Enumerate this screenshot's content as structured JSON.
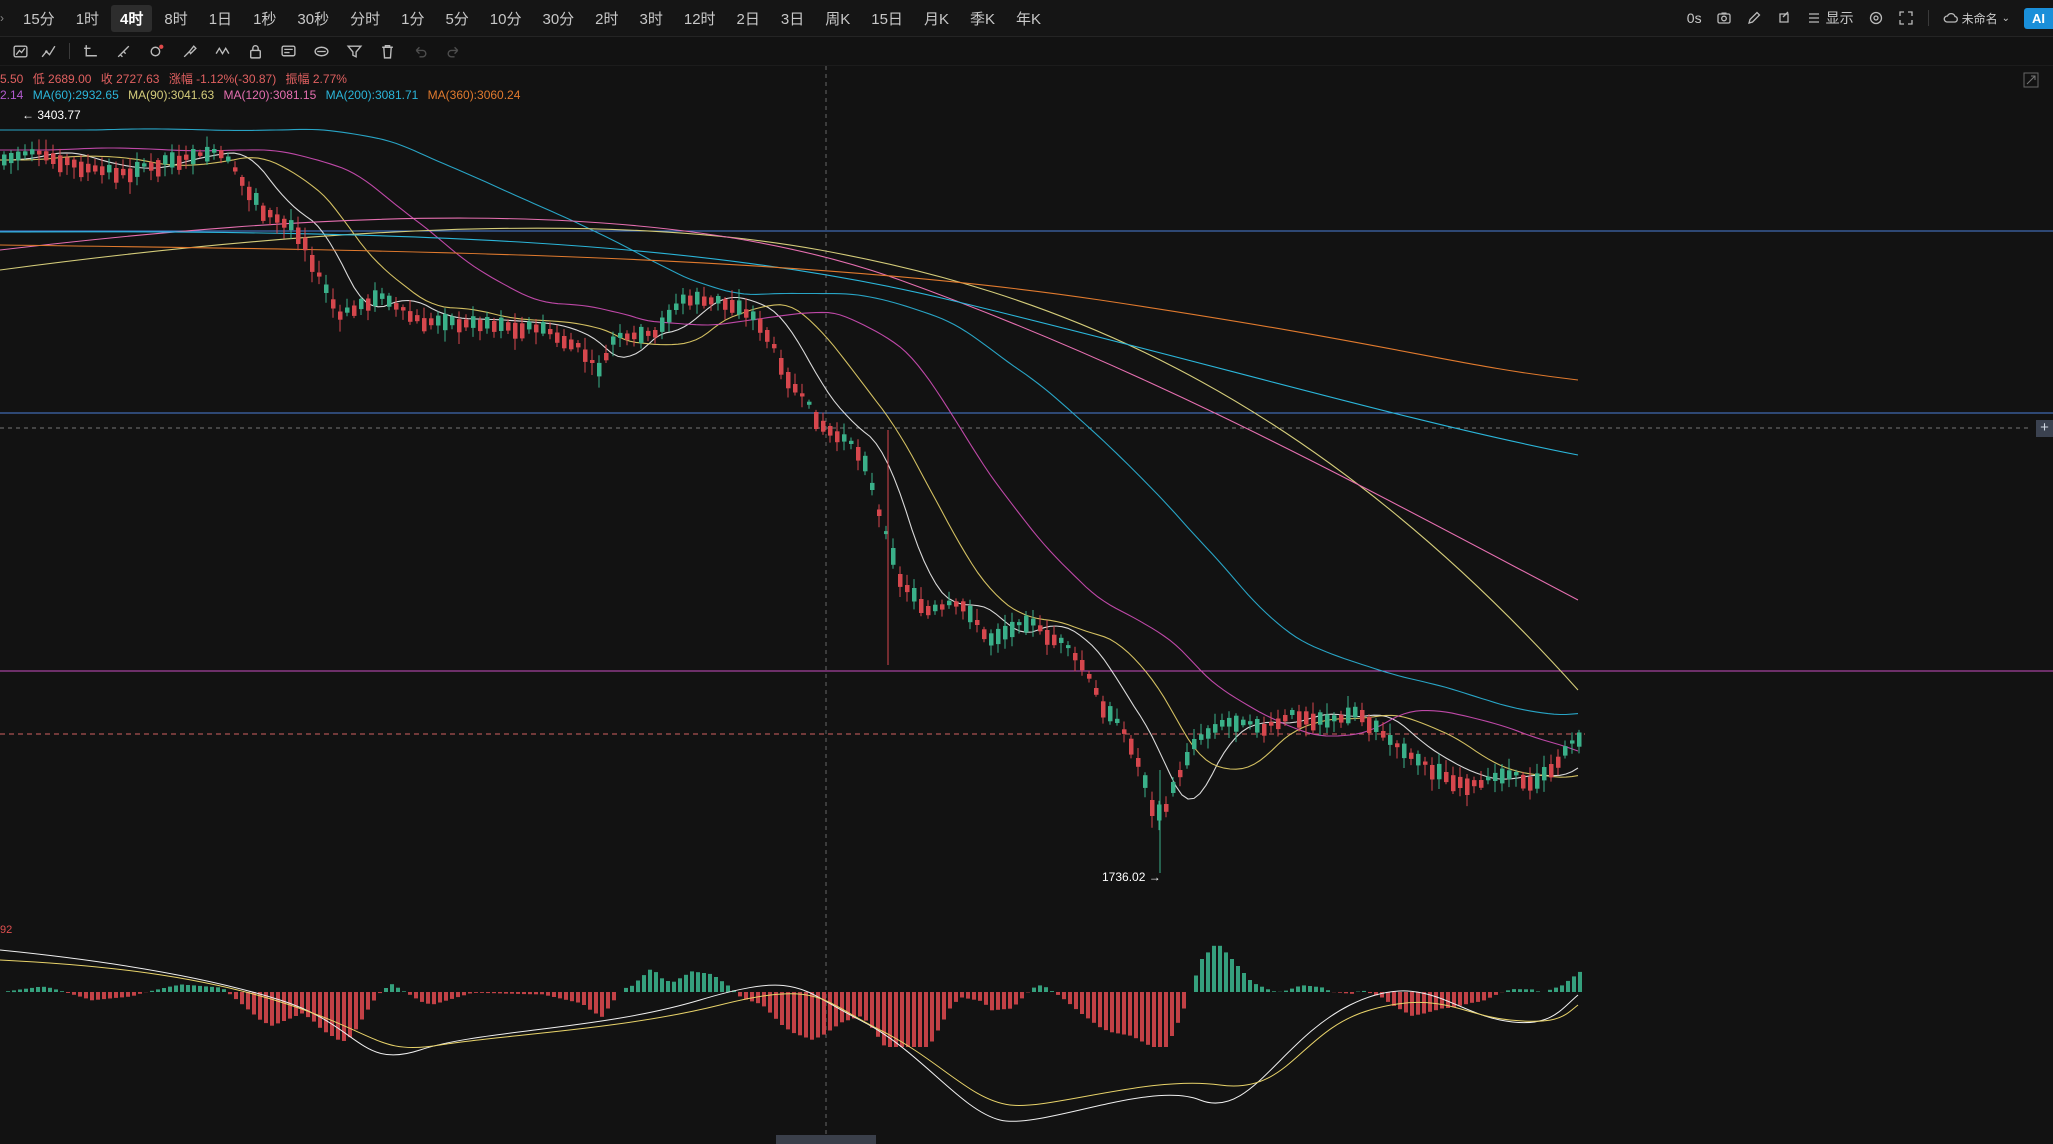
{
  "timeframes": [
    "15分",
    "1时",
    "4时",
    "8时",
    "1日",
    "1秒",
    "30秒",
    "分时",
    "1分",
    "5分",
    "10分",
    "30分",
    "2时",
    "3时",
    "12时",
    "2日",
    "3日",
    "周K",
    "15日",
    "月K",
    "季K",
    "年K"
  ],
  "active_timeframe_index": 2,
  "right_tools": {
    "timer": "0s",
    "display_label": "显示",
    "layout_name": "未命名",
    "ai_badge": "AI"
  },
  "legend_line1": {
    "high_fragment": "5.50",
    "low": "低 2689.00",
    "close": "收 2727.63",
    "change": "涨幅 -1.12%(-30.87)",
    "amplitude": "振幅 2.77%"
  },
  "legend_line2": {
    "ma_prev": "2.14",
    "ma60": "MA(60):2932.65",
    "ma90": "MA(90):3041.63",
    "ma120": "MA(120):3081.15",
    "ma200": "MA(200):3081.71",
    "ma360": "MA(360):3060.24"
  },
  "annotations": {
    "high_label": "3403.77",
    "low_label": "1736.02"
  },
  "macd_tag": "92",
  "colors": {
    "bg": "#121212",
    "up": "#3ab089",
    "down": "#d6474d",
    "ma_short": "#f0f0f0",
    "ma_yellow": "#e8d36a",
    "ma_pink": "#d24fb8",
    "ma_cyan": "#2bb5d9",
    "ma_lightyellow": "#d4cc7a",
    "ma_orange": "#e07a2e",
    "hline_blue": "#4a7fd6",
    "hline_pink": "#c84fc0",
    "hline_red_dashed": "#d06060"
  },
  "icons": [
    "multi-chart-icon",
    "indicator-icon",
    "draw-line-icon",
    "ruler-icon",
    "magnet-icon",
    "brush-icon",
    "pattern-icon",
    "lock-icon",
    "message-icon",
    "signal-icon",
    "filter-icon",
    "trash-icon",
    "undo-icon",
    "redo-icon",
    "camera-icon",
    "edit-icon",
    "sync-icon",
    "settings-icon",
    "fullscreen-icon",
    "cloud-icon"
  ]
}
